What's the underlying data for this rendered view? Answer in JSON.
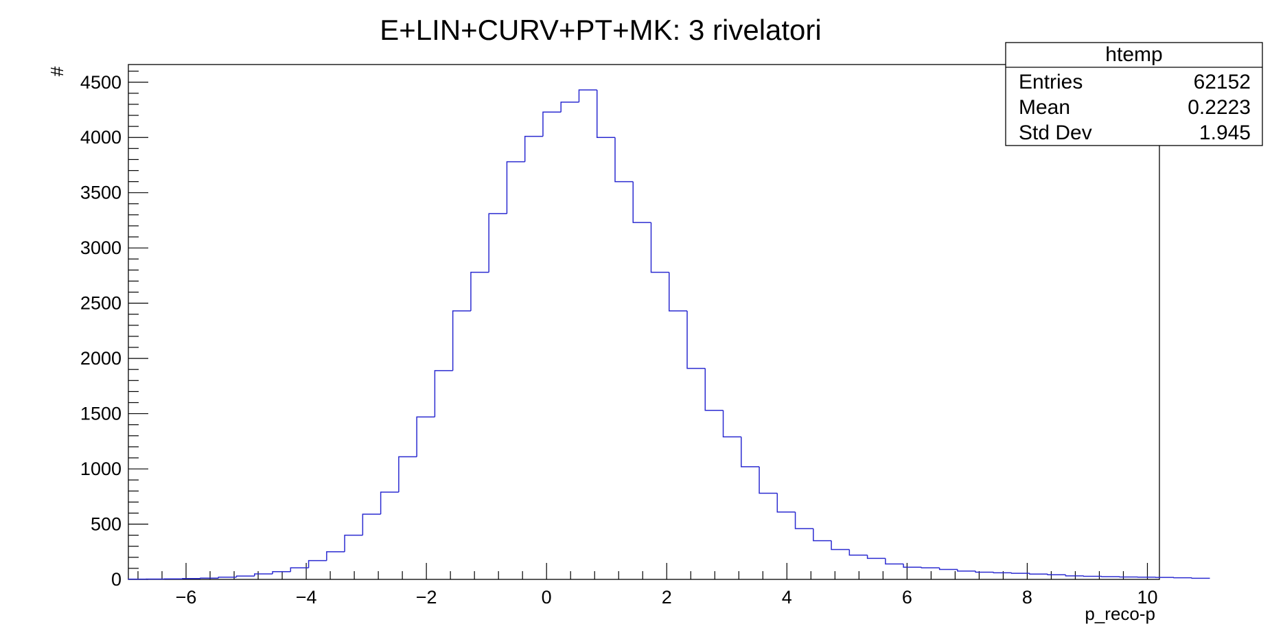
{
  "chart_data": {
    "type": "histogram",
    "title": "E+LIN+CURV+PT+MK: 3 rivelatori",
    "xlabel": "p_reco-p",
    "ylabel": "#",
    "xlim": [
      -6.96,
      10.2
    ],
    "ylim": [
      0,
      4660
    ],
    "bin_edges_start": -6.96,
    "bin_width": 0.3,
    "x_ticks": [
      -6,
      -4,
      -2,
      0,
      2,
      4,
      6,
      8,
      10
    ],
    "x_tick_labels": [
      "−6",
      "−4",
      "−2",
      "0",
      "2",
      "4",
      "6",
      "8",
      "10"
    ],
    "y_ticks": [
      0,
      500,
      1000,
      1500,
      2000,
      2500,
      3000,
      3500,
      4000,
      4500
    ],
    "y_tick_labels": [
      "0",
      "500",
      "1000",
      "1500",
      "2000",
      "2500",
      "3000",
      "3500",
      "4000",
      "4500"
    ],
    "values": [
      2,
      3,
      5,
      8,
      12,
      20,
      30,
      50,
      70,
      105,
      170,
      250,
      400,
      590,
      790,
      1110,
      1470,
      1890,
      2430,
      2780,
      3310,
      3780,
      4010,
      4230,
      4320,
      4430,
      4000,
      3600,
      3230,
      2780,
      2430,
      1910,
      1530,
      1290,
      1020,
      780,
      610,
      460,
      350,
      270,
      220,
      190,
      140,
      110,
      105,
      90,
      75,
      65,
      60,
      55,
      48,
      42,
      32,
      28,
      25,
      22,
      20,
      18,
      15,
      10
    ],
    "line_color": "#2a2ad0",
    "stats": {
      "name": "htemp",
      "rows": [
        {
          "label": "Entries",
          "value": "62152"
        },
        {
          "label": "Mean",
          "value": "0.2223"
        },
        {
          "label": "Std Dev",
          "value": "1.945"
        }
      ]
    }
  }
}
